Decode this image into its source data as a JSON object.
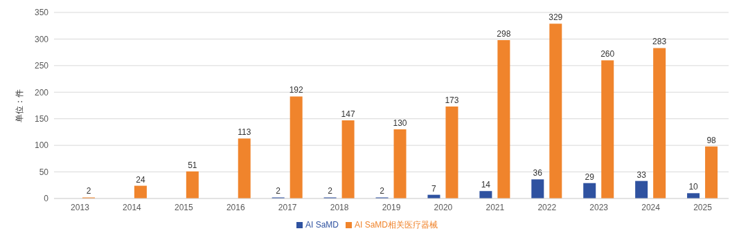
{
  "chart_data": {
    "type": "bar",
    "ylabel": "单位：件",
    "categories": [
      "2013",
      "2014",
      "2015",
      "2016",
      "2017",
      "2018",
      "2019",
      "2020",
      "2021",
      "2022",
      "2023",
      "2024",
      "2025"
    ],
    "series": [
      {
        "name": "AI SaMD",
        "color": "#2f52a0",
        "values": [
          null,
          null,
          null,
          null,
          2,
          2,
          2,
          7,
          14,
          36,
          29,
          33,
          10
        ]
      },
      {
        "name": "AI SaMD相关医疗器械",
        "color": "#f0842c",
        "values": [
          2,
          24,
          51,
          113,
          192,
          147,
          130,
          173,
          298,
          329,
          260,
          283,
          98
        ]
      }
    ],
    "ylim": [
      0,
      350
    ],
    "yticks": [
      0,
      50,
      100,
      150,
      200,
      250,
      300,
      350
    ],
    "grid": "y",
    "legend": "bottom",
    "data_labels": true
  }
}
